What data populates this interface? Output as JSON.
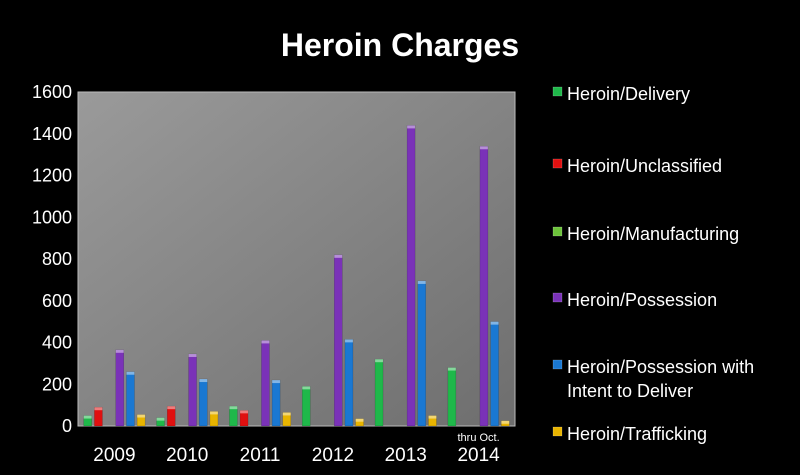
{
  "chart_data": {
    "type": "bar",
    "title": "Heroin Charges",
    "xlabel": "",
    "ylabel": "",
    "ylim": [
      0,
      1600
    ],
    "yticks": [
      0,
      200,
      400,
      600,
      800,
      1000,
      1200,
      1400,
      1600
    ],
    "grid": false,
    "legend_position": "right",
    "categories": [
      "2009",
      "2010",
      "2011",
      "2012",
      "2013",
      "2014"
    ],
    "category_notes": [
      "",
      "",
      "",
      "",
      "",
      "thru Oct."
    ],
    "series": [
      {
        "name": "Heroin/Delivery",
        "color": "#1fb84a",
        "values": [
          50,
          40,
          95,
          190,
          320,
          280
        ]
      },
      {
        "name": "Heroin/Unclassified",
        "color": "#e01010",
        "values": [
          90,
          95,
          75,
          0,
          0,
          0
        ]
      },
      {
        "name": "Heroin/Manufacturing",
        "color": "#6cc23a",
        "values": [
          0,
          0,
          0,
          0,
          0,
          0
        ]
      },
      {
        "name": "Heroin/Possession",
        "color": "#7a32b8",
        "values": [
          365,
          345,
          410,
          820,
          1440,
          1340
        ]
      },
      {
        "name": "Heroin/Possession with Intent to Deliver",
        "color": "#1a78d2",
        "values": [
          260,
          225,
          220,
          415,
          695,
          500
        ]
      },
      {
        "name": "Heroin/Trafficking",
        "color": "#e8b400",
        "values": [
          55,
          70,
          65,
          35,
          50,
          25
        ]
      }
    ]
  }
}
